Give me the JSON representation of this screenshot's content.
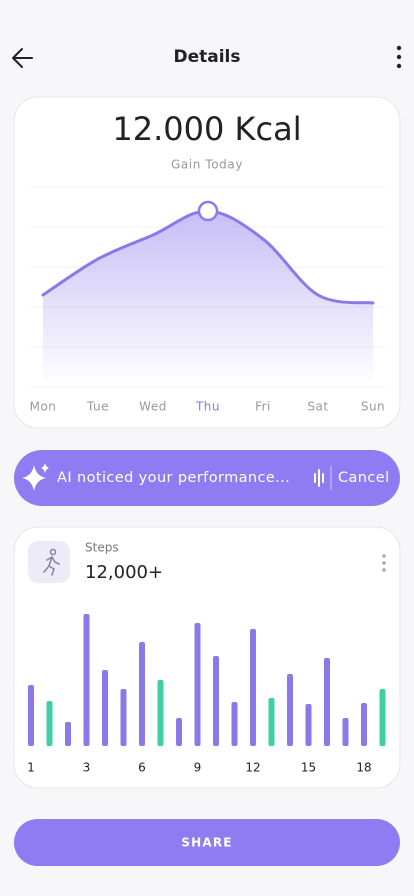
{
  "header": {
    "title": "Details"
  },
  "calories": {
    "amount": "12.000 Kcal",
    "subtitle": "Gain Today",
    "chart_data": {
      "type": "line",
      "categories": [
        "Mon",
        "Tue",
        "Wed",
        "Thu",
        "Fri",
        "Sat",
        "Sun"
      ],
      "values": [
        2.3,
        3.2,
        3.8,
        4.4,
        3.7,
        2.3,
        2.1
      ],
      "ylim": [
        0,
        5
      ],
      "color": "#8b79ea",
      "highlight_index": 3
    }
  },
  "banner": {
    "text": "AI noticed your performance...",
    "action": "Cancel"
  },
  "steps": {
    "label": "Steps",
    "amount": "12,000+",
    "chart_data": {
      "type": "bar",
      "categories": [
        "1",
        null,
        null,
        "3",
        null,
        null,
        "6",
        null,
        null,
        "9",
        null,
        null,
        "12",
        null,
        null,
        "15",
        null,
        null,
        "18",
        null
      ],
      "values": [
        61,
        45,
        24,
        132,
        76,
        57,
        104,
        66,
        28,
        123,
        90,
        44,
        117,
        48,
        72,
        42,
        88,
        28,
        43,
        57
      ],
      "ylim": [
        0,
        140
      ],
      "color": "#8b79ea",
      "highlight_color": "#3ecfa6",
      "highlight_indices": [
        1,
        7,
        13,
        19
      ]
    }
  },
  "button": {
    "label": "SHARE"
  }
}
